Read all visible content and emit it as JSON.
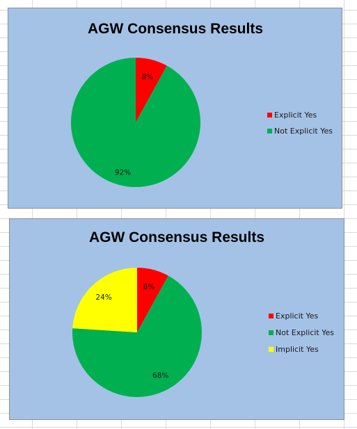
{
  "chart_data": [
    {
      "type": "pie",
      "title": "AGW Consensus Results",
      "categories": [
        "Explicit Yes",
        "Not Explicit Yes"
      ],
      "values": [
        8,
        92
      ],
      "labels": [
        "8%",
        "92%"
      ],
      "colors": [
        "#ff0000",
        "#00b050"
      ],
      "legend": "right"
    },
    {
      "type": "pie",
      "title": "AGW Consensus Results",
      "categories": [
        "Explicit Yes",
        "Not Explicit Yes",
        "Implicit Yes"
      ],
      "values": [
        8,
        68,
        24
      ],
      "labels": [
        "8%",
        "68%",
        "24%"
      ],
      "colors": [
        "#ff0000",
        "#00b050",
        "#ffff00"
      ],
      "legend": "right"
    }
  ]
}
